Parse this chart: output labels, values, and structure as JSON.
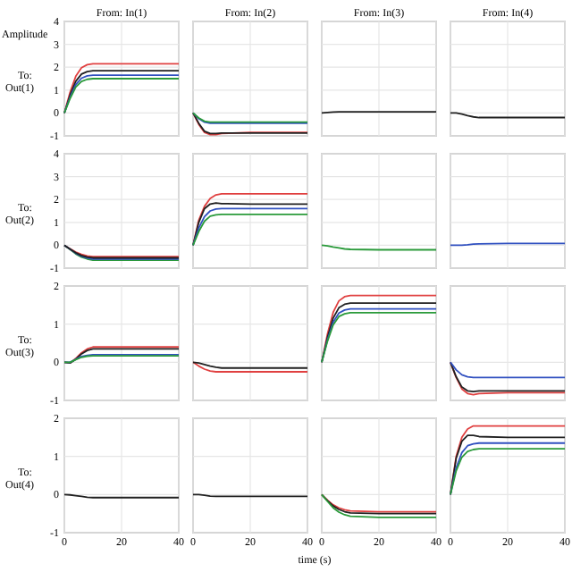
{
  "chart_data": [
    {
      "type": "line",
      "title": "From: In(1)",
      "ylabel": "To: Out(1)",
      "annotations": [
        "Amplitude"
      ],
      "x": [
        0,
        2,
        4,
        6,
        8,
        10,
        20,
        40
      ],
      "xlim": [
        0,
        40
      ],
      "xticks": [
        0,
        20,
        40
      ],
      "ylim": [
        -1,
        4
      ],
      "yticks": [
        -1,
        0,
        1,
        2,
        3,
        4
      ],
      "grid": true,
      "tick_labels": "y",
      "series": [
        {
          "color": "#e04040",
          "values": [
            0,
            0.9,
            1.61,
            1.98,
            2.11,
            2.15,
            2.15,
            2.15
          ]
        },
        {
          "color": "#202020",
          "values": [
            0,
            0.78,
            1.39,
            1.7,
            1.81,
            1.85,
            1.85,
            1.85
          ]
        },
        {
          "color": "#3050c0",
          "values": [
            0,
            0.69,
            1.24,
            1.52,
            1.62,
            1.65,
            1.65,
            1.65
          ]
        },
        {
          "color": "#2a9a3a",
          "values": [
            0,
            0.63,
            1.13,
            1.38,
            1.47,
            1.5,
            1.5,
            1.5
          ]
        }
      ]
    },
    {
      "type": "line",
      "title": "From: In(2)",
      "x": [
        0,
        2,
        4,
        6,
        8,
        10,
        20,
        40
      ],
      "xlim": [
        0,
        40
      ],
      "xticks": [
        0,
        20,
        40
      ],
      "ylim": [
        -1,
        4
      ],
      "yticks": [
        -1,
        0,
        1,
        2,
        3,
        4
      ],
      "grid": true,
      "tick_labels": false,
      "series": [
        {
          "color": "#e04040",
          "values": [
            0,
            -0.5,
            -0.85,
            -0.95,
            -0.95,
            -0.9,
            -0.85,
            -0.85
          ]
        },
        {
          "color": "#202020",
          "values": [
            0,
            -0.45,
            -0.8,
            -0.9,
            -0.9,
            -0.88,
            -0.88,
            -0.88
          ]
        },
        {
          "color": "#3050c0",
          "values": [
            0,
            -0.25,
            -0.4,
            -0.45,
            -0.45,
            -0.45,
            -0.45,
            -0.45
          ]
        },
        {
          "color": "#2a9a3a",
          "values": [
            0,
            -0.22,
            -0.36,
            -0.4,
            -0.4,
            -0.4,
            -0.4,
            -0.4
          ]
        }
      ]
    },
    {
      "type": "line",
      "title": "From: In(3)",
      "x": [
        0,
        2,
        4,
        6,
        8,
        10,
        20,
        40
      ],
      "xlim": [
        0,
        40
      ],
      "xticks": [
        0,
        20,
        40
      ],
      "ylim": [
        -1,
        4
      ],
      "yticks": [
        -1,
        0,
        1,
        2,
        3,
        4
      ],
      "grid": true,
      "tick_labels": false,
      "series": [
        {
          "color": "#202020",
          "values": [
            0,
            0.02,
            0.04,
            0.05,
            0.05,
            0.05,
            0.05,
            0.05
          ]
        }
      ]
    },
    {
      "type": "line",
      "title": "From: In(4)",
      "x": [
        0,
        2,
        4,
        6,
        8,
        10,
        20,
        40
      ],
      "xlim": [
        0,
        40
      ],
      "xticks": [
        0,
        20,
        40
      ],
      "ylim": [
        -1,
        4
      ],
      "yticks": [
        -1,
        0,
        1,
        2,
        3,
        4
      ],
      "grid": true,
      "tick_labels": false,
      "series": [
        {
          "color": "#202020",
          "values": [
            0,
            0,
            -0.05,
            -0.12,
            -0.17,
            -0.2,
            -0.2,
            -0.2
          ]
        }
      ]
    },
    {
      "type": "line",
      "ylabel": "To: Out(2)",
      "x": [
        0,
        2,
        4,
        6,
        8,
        10,
        20,
        40
      ],
      "xlim": [
        0,
        40
      ],
      "xticks": [
        0,
        20,
        40
      ],
      "ylim": [
        -1,
        4
      ],
      "yticks": [
        -1,
        0,
        1,
        2,
        3,
        4
      ],
      "grid": true,
      "tick_labels": "y",
      "series": [
        {
          "color": "#e04040",
          "values": [
            0,
            -0.15,
            -0.3,
            -0.4,
            -0.47,
            -0.5,
            -0.5,
            -0.5
          ]
        },
        {
          "color": "#2a9a3a",
          "values": [
            0,
            -0.18,
            -0.38,
            -0.52,
            -0.6,
            -0.65,
            -0.65,
            -0.65
          ]
        },
        {
          "color": "#3050c0",
          "values": [
            0,
            -0.17,
            -0.35,
            -0.48,
            -0.56,
            -0.6,
            -0.6,
            -0.6
          ]
        },
        {
          "color": "#202020",
          "values": [
            0,
            -0.17,
            -0.33,
            -0.45,
            -0.52,
            -0.55,
            -0.55,
            -0.55
          ]
        }
      ]
    },
    {
      "type": "line",
      "x": [
        0,
        2,
        4,
        6,
        8,
        10,
        20,
        40
      ],
      "xlim": [
        0,
        40
      ],
      "xticks": [
        0,
        20,
        40
      ],
      "ylim": [
        -1,
        4
      ],
      "yticks": [
        -1,
        0,
        1,
        2,
        3,
        4
      ],
      "grid": true,
      "tick_labels": false,
      "series": [
        {
          "color": "#e04040",
          "values": [
            0,
            1.1,
            1.7,
            2.05,
            2.2,
            2.25,
            2.25,
            2.25
          ]
        },
        {
          "color": "#202020",
          "values": [
            0,
            1.0,
            1.6,
            1.8,
            1.85,
            1.82,
            1.8,
            1.8
          ]
        },
        {
          "color": "#3050c0",
          "values": [
            0,
            0.75,
            1.25,
            1.5,
            1.58,
            1.6,
            1.6,
            1.6
          ]
        },
        {
          "color": "#2a9a3a",
          "values": [
            0,
            0.6,
            1.05,
            1.27,
            1.33,
            1.35,
            1.35,
            1.35
          ]
        }
      ]
    },
    {
      "type": "line",
      "x": [
        0,
        2,
        4,
        6,
        8,
        10,
        20,
        40
      ],
      "xlim": [
        0,
        40
      ],
      "xticks": [
        0,
        20,
        40
      ],
      "ylim": [
        -1,
        4
      ],
      "yticks": [
        -1,
        0,
        1,
        2,
        3,
        4
      ],
      "grid": true,
      "tick_labels": false,
      "series": [
        {
          "color": "#2a9a3a",
          "values": [
            0,
            -0.03,
            -0.08,
            -0.12,
            -0.16,
            -0.18,
            -0.2,
            -0.2
          ]
        }
      ]
    },
    {
      "type": "line",
      "x": [
        0,
        2,
        4,
        6,
        8,
        10,
        20,
        40
      ],
      "xlim": [
        0,
        40
      ],
      "xticks": [
        0,
        20,
        40
      ],
      "ylim": [
        -1,
        4
      ],
      "yticks": [
        -1,
        0,
        1,
        2,
        3,
        4
      ],
      "grid": true,
      "tick_labels": false,
      "series": [
        {
          "color": "#3050c0",
          "values": [
            0,
            0,
            0,
            0.02,
            0.05,
            0.06,
            0.08,
            0.08
          ]
        }
      ]
    },
    {
      "type": "line",
      "ylabel": "To: Out(3)",
      "x": [
        0,
        2,
        4,
        6,
        8,
        10,
        20,
        40
      ],
      "xlim": [
        0,
        40
      ],
      "xticks": [
        0,
        20,
        40
      ],
      "ylim": [
        -1,
        2
      ],
      "yticks": [
        -1,
        0,
        1,
        2
      ],
      "grid": true,
      "tick_labels": "y",
      "series": [
        {
          "color": "#e04040",
          "values": [
            0,
            -0.02,
            0.1,
            0.25,
            0.35,
            0.4,
            0.4,
            0.4
          ]
        },
        {
          "color": "#202020",
          "values": [
            0,
            -0.02,
            0.08,
            0.22,
            0.31,
            0.35,
            0.35,
            0.35
          ]
        },
        {
          "color": "#3050c0",
          "values": [
            0,
            0,
            0.08,
            0.15,
            0.18,
            0.2,
            0.2,
            0.2
          ]
        },
        {
          "color": "#2a9a3a",
          "values": [
            0,
            0,
            0.07,
            0.13,
            0.16,
            0.17,
            0.17,
            0.17
          ]
        }
      ]
    },
    {
      "type": "line",
      "x": [
        0,
        2,
        4,
        6,
        8,
        10,
        20,
        40
      ],
      "xlim": [
        0,
        40
      ],
      "xticks": [
        0,
        20,
        40
      ],
      "ylim": [
        -1,
        2
      ],
      "yticks": [
        -1,
        0,
        1,
        2
      ],
      "grid": true,
      "tick_labels": false,
      "series": [
        {
          "color": "#e04040",
          "values": [
            0,
            -0.1,
            -0.18,
            -0.23,
            -0.25,
            -0.25,
            -0.25,
            -0.25
          ]
        },
        {
          "color": "#202020",
          "values": [
            0,
            -0.02,
            -0.06,
            -0.1,
            -0.13,
            -0.15,
            -0.15,
            -0.15
          ]
        }
      ]
    },
    {
      "type": "line",
      "x": [
        0,
        2,
        4,
        6,
        8,
        10,
        20,
        40
      ],
      "xlim": [
        0,
        40
      ],
      "xticks": [
        0,
        20,
        40
      ],
      "ylim": [
        -1,
        2
      ],
      "yticks": [
        -1,
        0,
        1,
        2
      ],
      "grid": true,
      "tick_labels": false,
      "series": [
        {
          "color": "#e04040",
          "values": [
            0,
            0.74,
            1.31,
            1.61,
            1.72,
            1.75,
            1.75,
            1.75
          ]
        },
        {
          "color": "#202020",
          "values": [
            0,
            0.65,
            1.16,
            1.43,
            1.52,
            1.55,
            1.55,
            1.55
          ]
        },
        {
          "color": "#3050c0",
          "values": [
            0,
            0.59,
            1.05,
            1.29,
            1.37,
            1.4,
            1.4,
            1.4
          ]
        },
        {
          "color": "#2a9a3a",
          "values": [
            0,
            0.55,
            0.98,
            1.2,
            1.27,
            1.3,
            1.3,
            1.3
          ]
        }
      ]
    },
    {
      "type": "line",
      "x": [
        0,
        2,
        4,
        6,
        8,
        10,
        20,
        40
      ],
      "xlim": [
        0,
        40
      ],
      "xticks": [
        0,
        20,
        40
      ],
      "ylim": [
        -1,
        2
      ],
      "yticks": [
        -1,
        0,
        1,
        2
      ],
      "grid": true,
      "tick_labels": false,
      "series": [
        {
          "color": "#e04040",
          "values": [
            0,
            -0.4,
            -0.7,
            -0.82,
            -0.85,
            -0.82,
            -0.8,
            -0.8
          ]
        },
        {
          "color": "#202020",
          "values": [
            0,
            -0.38,
            -0.65,
            -0.75,
            -0.77,
            -0.75,
            -0.75,
            -0.75
          ]
        },
        {
          "color": "#3050c0",
          "values": [
            0,
            -0.2,
            -0.33,
            -0.38,
            -0.4,
            -0.4,
            -0.4,
            -0.4
          ]
        }
      ]
    },
    {
      "type": "line",
      "ylabel": "To: Out(4)",
      "x": [
        0,
        2,
        4,
        6,
        8,
        10,
        20,
        40
      ],
      "xlim": [
        0,
        40
      ],
      "xticks": [
        0,
        20,
        40
      ],
      "ylim": [
        -1,
        2
      ],
      "yticks": [
        -1,
        0,
        1,
        2
      ],
      "grid": true,
      "tick_labels": "xy",
      "series": [
        {
          "color": "#202020",
          "values": [
            0,
            -0.01,
            -0.03,
            -0.05,
            -0.07,
            -0.08,
            -0.08,
            -0.08
          ]
        }
      ]
    },
    {
      "type": "line",
      "xlabel": "time (s)",
      "x": [
        0,
        2,
        4,
        6,
        8,
        10,
        20,
        40
      ],
      "xlim": [
        0,
        40
      ],
      "xticks": [
        0,
        20,
        40
      ],
      "ylim": [
        -1,
        2
      ],
      "yticks": [
        -1,
        0,
        1,
        2
      ],
      "grid": true,
      "tick_labels": "x",
      "series": [
        {
          "color": "#202020",
          "values": [
            0,
            0,
            -0.02,
            -0.04,
            -0.05,
            -0.05,
            -0.05,
            -0.05
          ]
        }
      ]
    },
    {
      "type": "line",
      "x": [
        0,
        2,
        4,
        6,
        8,
        10,
        20,
        40
      ],
      "xlim": [
        0,
        40
      ],
      "xticks": [
        0,
        20,
        40
      ],
      "ylim": [
        -1,
        2
      ],
      "yticks": [
        -1,
        0,
        1,
        2
      ],
      "grid": true,
      "tick_labels": "x",
      "series": [
        {
          "color": "#e04040",
          "values": [
            0,
            -0.15,
            -0.27,
            -0.35,
            -0.4,
            -0.43,
            -0.45,
            -0.45
          ]
        },
        {
          "color": "#202020",
          "values": [
            0,
            -0.16,
            -0.3,
            -0.39,
            -0.45,
            -0.48,
            -0.5,
            -0.5
          ]
        },
        {
          "color": "#2a9a3a",
          "values": [
            0,
            -0.18,
            -0.35,
            -0.46,
            -0.53,
            -0.57,
            -0.6,
            -0.6
          ]
        }
      ]
    },
    {
      "type": "line",
      "x": [
        0,
        2,
        4,
        6,
        8,
        10,
        20,
        40
      ],
      "xlim": [
        0,
        40
      ],
      "xticks": [
        0,
        20,
        40
      ],
      "ylim": [
        -1,
        2
      ],
      "yticks": [
        -1,
        0,
        1,
        2
      ],
      "grid": true,
      "tick_labels": "x",
      "series": [
        {
          "color": "#e04040",
          "values": [
            0,
            1.0,
            1.5,
            1.72,
            1.8,
            1.8,
            1.8,
            1.8
          ]
        },
        {
          "color": "#202020",
          "values": [
            0,
            0.95,
            1.4,
            1.55,
            1.55,
            1.52,
            1.5,
            1.5
          ]
        },
        {
          "color": "#3050c0",
          "values": [
            0,
            0.7,
            1.1,
            1.28,
            1.33,
            1.35,
            1.35,
            1.35
          ]
        },
        {
          "color": "#2a9a3a",
          "values": [
            0,
            0.62,
            0.98,
            1.13,
            1.18,
            1.2,
            1.2,
            1.2
          ]
        }
      ]
    }
  ]
}
